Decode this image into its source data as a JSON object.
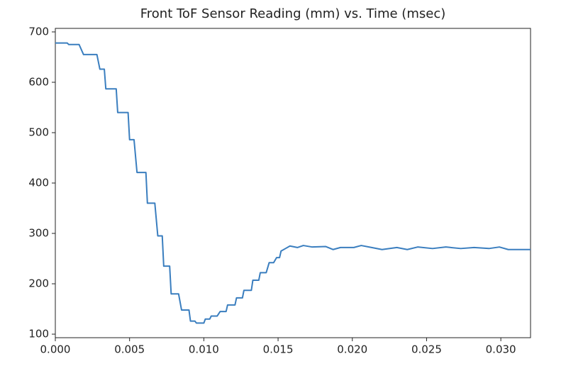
{
  "chart_data": {
    "type": "line",
    "title": "Front ToF Sensor Reading (mm) vs. Time (msec)",
    "x": [
      0.0,
      0.0008,
      0.0009,
      0.0016,
      0.0019,
      0.0028,
      0.003,
      0.0033,
      0.0034,
      0.0041,
      0.0042,
      0.0049,
      0.005,
      0.0053,
      0.0055,
      0.0061,
      0.0062,
      0.0067,
      0.0069,
      0.0072,
      0.0073,
      0.0077,
      0.0078,
      0.0083,
      0.0085,
      0.009,
      0.0091,
      0.0094,
      0.0095,
      0.01,
      0.0101,
      0.0104,
      0.0105,
      0.0109,
      0.0111,
      0.0115,
      0.0116,
      0.0121,
      0.0122,
      0.0126,
      0.0127,
      0.0132,
      0.0133,
      0.0137,
      0.0138,
      0.0142,
      0.0144,
      0.0147,
      0.0149,
      0.0151,
      0.0152,
      0.0155,
      0.0158,
      0.0163,
      0.0167,
      0.0173,
      0.0182,
      0.0187,
      0.0192,
      0.0201,
      0.0206,
      0.0213,
      0.022,
      0.023,
      0.0237,
      0.0244,
      0.0254,
      0.0263,
      0.0273,
      0.0282,
      0.0292,
      0.0299,
      0.0305,
      0.032
    ],
    "series": [
      {
        "color": "#3a7ebf",
        "values": [
          678,
          678,
          675,
          675,
          655,
          655,
          626,
          626,
          587,
          587,
          540,
          540,
          486,
          486,
          421,
          421,
          360,
          360,
          295,
          295,
          235,
          235,
          180,
          180,
          148,
          148,
          126,
          126,
          122,
          122,
          130,
          130,
          136,
          136,
          145,
          145,
          158,
          158,
          172,
          172,
          187,
          187,
          207,
          207,
          222,
          222,
          242,
          242,
          252,
          252,
          265,
          270,
          275,
          272,
          276,
          273,
          274,
          268,
          272,
          272,
          276,
          272,
          268,
          272,
          268,
          273,
          270,
          273,
          270,
          272,
          270,
          273,
          268,
          268
        ]
      }
    ],
    "xlim": [
      0,
      0.032
    ],
    "ylim": [
      93,
      707
    ],
    "xticks": [
      {
        "value": 0,
        "label": "0.000"
      },
      {
        "value": 0.005,
        "label": "0.005"
      },
      {
        "value": 0.01,
        "label": "0.010"
      },
      {
        "value": 0.015,
        "label": "0.015"
      },
      {
        "value": 0.02,
        "label": "0.020"
      },
      {
        "value": 0.025,
        "label": "0.025"
      },
      {
        "value": 0.03,
        "label": "0.030"
      }
    ],
    "yticks": [
      100,
      200,
      300,
      400,
      500,
      600,
      700
    ]
  }
}
